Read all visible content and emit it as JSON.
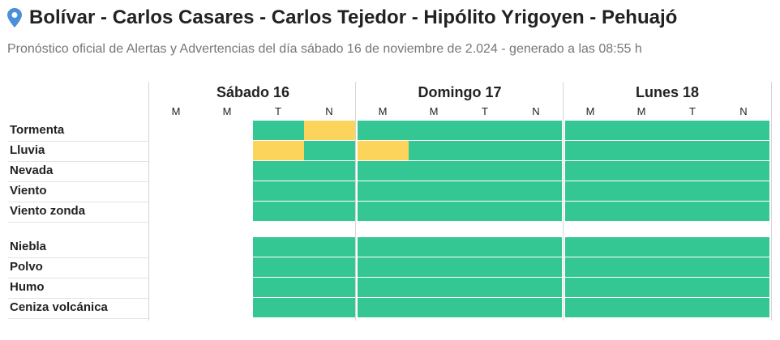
{
  "header": {
    "title": "Bolívar - Carlos Casares - Carlos Tejedor - Hipólito Yrigoyen - Pehuajó",
    "subtitle": "Pronóstico oficial de Alertas y Advertencias del día sábado 16 de noviembre de 2.024 - generado a las 08:55 h",
    "icon": "location-pin-icon"
  },
  "colors": {
    "none": "#ffffff",
    "green": "#34c794",
    "yellow": "#fdd45b",
    "pin": "#4a90d9"
  },
  "days": [
    {
      "name": "Sábado 16",
      "periods": [
        "M",
        "M",
        "T",
        "N"
      ]
    },
    {
      "name": "Domingo 17",
      "periods": [
        "M",
        "M",
        "T",
        "N"
      ]
    },
    {
      "name": "Lunes 18",
      "periods": [
        "M",
        "M",
        "T",
        "N"
      ]
    }
  ],
  "rows": [
    {
      "label": "Tormenta",
      "cells": [
        "none",
        "none",
        "green",
        "yellow",
        "green",
        "green",
        "green",
        "green",
        "green",
        "green",
        "green",
        "green"
      ]
    },
    {
      "label": "Lluvia",
      "cells": [
        "none",
        "none",
        "yellow",
        "green",
        "yellow",
        "green",
        "green",
        "green",
        "green",
        "green",
        "green",
        "green"
      ]
    },
    {
      "label": "Nevada",
      "cells": [
        "none",
        "none",
        "green",
        "green",
        "green",
        "green",
        "green",
        "green",
        "green",
        "green",
        "green",
        "green"
      ]
    },
    {
      "label": "Viento",
      "cells": [
        "none",
        "none",
        "green",
        "green",
        "green",
        "green",
        "green",
        "green",
        "green",
        "green",
        "green",
        "green"
      ]
    },
    {
      "label": "Viento zonda",
      "cells": [
        "none",
        "none",
        "green",
        "green",
        "green",
        "green",
        "green",
        "green",
        "green",
        "green",
        "green",
        "green"
      ]
    },
    {
      "label": "Niebla",
      "cells": [
        "none",
        "none",
        "green",
        "green",
        "green",
        "green",
        "green",
        "green",
        "green",
        "green",
        "green",
        "green"
      ]
    },
    {
      "label": "Polvo",
      "cells": [
        "none",
        "none",
        "green",
        "green",
        "green",
        "green",
        "green",
        "green",
        "green",
        "green",
        "green",
        "green"
      ]
    },
    {
      "label": "Humo",
      "cells": [
        "none",
        "none",
        "green",
        "green",
        "green",
        "green",
        "green",
        "green",
        "green",
        "green",
        "green",
        "green"
      ]
    },
    {
      "label": "Ceniza volcánica",
      "cells": [
        "none",
        "none",
        "green",
        "green",
        "green",
        "green",
        "green",
        "green",
        "green",
        "green",
        "green",
        "green"
      ]
    }
  ]
}
